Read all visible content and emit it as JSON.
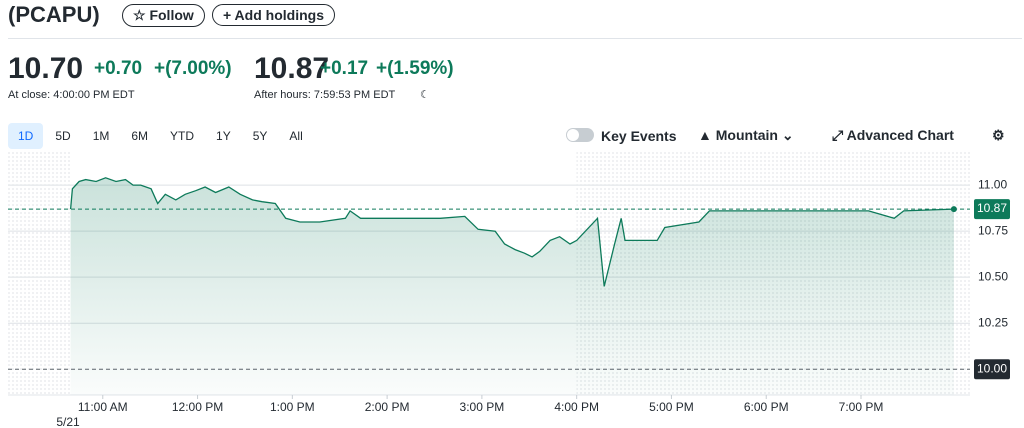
{
  "header": {
    "ticker": "(PCAPU)",
    "follow": "Follow",
    "add_holdings": "Add holdings"
  },
  "quote": {
    "price": "10.70",
    "change": "+0.70",
    "change_pct": "+(7.00%)",
    "close_label": "At close: 4:00:00 PM EDT",
    "after_price": "10.87",
    "after_change": "+0.17",
    "after_change_pct": "+(1.59%)",
    "after_label": "After hours: 7:59:53 PM EDT"
  },
  "ranges": [
    "1D",
    "5D",
    "1M",
    "6M",
    "YTD",
    "1Y",
    "5Y",
    "All"
  ],
  "toolbar": {
    "key_events": "Key Events",
    "chart_style": "Mountain",
    "advanced": "Advanced Chart"
  },
  "chart_data": {
    "type": "area",
    "color": "#0d7a5a",
    "x": [
      10.66,
      10.68,
      10.75,
      10.82,
      10.93,
      11.03,
      11.14,
      11.24,
      11.32,
      11.4,
      11.51,
      11.58,
      11.66,
      11.77,
      11.87,
      11.98,
      12.08,
      12.19,
      12.33,
      12.45,
      12.58,
      12.68,
      12.82,
      12.93,
      13.08,
      13.29,
      13.56,
      13.61,
      13.72,
      13.93,
      14.24,
      14.56,
      14.82,
      14.96,
      15.14,
      15.24,
      15.35,
      15.45,
      15.53,
      15.61,
      15.72,
      15.82,
      15.93,
      16.0,
      16.22,
      16.29,
      16.4,
      16.47,
      16.51,
      16.85,
      16.93,
      17.29,
      17.4,
      19.08,
      19.35,
      19.45,
      19.98
    ],
    "values": [
      10.87,
      10.98,
      11.02,
      11.03,
      11.02,
      11.04,
      11.02,
      11.03,
      11.0,
      11.0,
      10.98,
      10.9,
      10.95,
      10.92,
      10.95,
      10.97,
      10.99,
      10.96,
      10.99,
      10.95,
      10.92,
      10.91,
      10.9,
      10.82,
      10.8,
      10.8,
      10.82,
      10.86,
      10.82,
      10.82,
      10.82,
      10.82,
      10.83,
      10.76,
      10.75,
      10.68,
      10.65,
      10.63,
      10.61,
      10.64,
      10.7,
      10.72,
      10.68,
      10.7,
      10.82,
      10.45,
      10.68,
      10.82,
      10.7,
      10.7,
      10.77,
      10.8,
      10.86,
      10.86,
      10.82,
      10.86,
      10.87
    ],
    "xlim": [
      10,
      20.15
    ],
    "ylim": [
      9.86,
      11.18
    ],
    "xticks": [
      {
        "value": 11,
        "label": "11:00 AM"
      },
      {
        "value": 12,
        "label": "12:00 PM"
      },
      {
        "value": 13,
        "label": "1:00 PM"
      },
      {
        "value": 14,
        "label": "2:00 PM"
      },
      {
        "value": 15,
        "label": "3:00 PM"
      },
      {
        "value": 16,
        "label": "4:00 PM"
      },
      {
        "value": 17,
        "label": "5:00 PM"
      },
      {
        "value": 18,
        "label": "6:00 PM"
      },
      {
        "value": 19,
        "label": "7:00 PM"
      }
    ],
    "yticks": [
      {
        "value": 10.25,
        "label": "10.25"
      },
      {
        "value": 10.5,
        "label": "10.50"
      },
      {
        "value": 10.75,
        "label": "10.75"
      },
      {
        "value": 11,
        "label": "11.00"
      }
    ],
    "date_label": "5/21",
    "session_end": 16,
    "last_price": {
      "value": 10.87,
      "label": "10.87"
    },
    "previous_close": {
      "value": 10,
      "label": "10.00"
    },
    "grid": true
  }
}
